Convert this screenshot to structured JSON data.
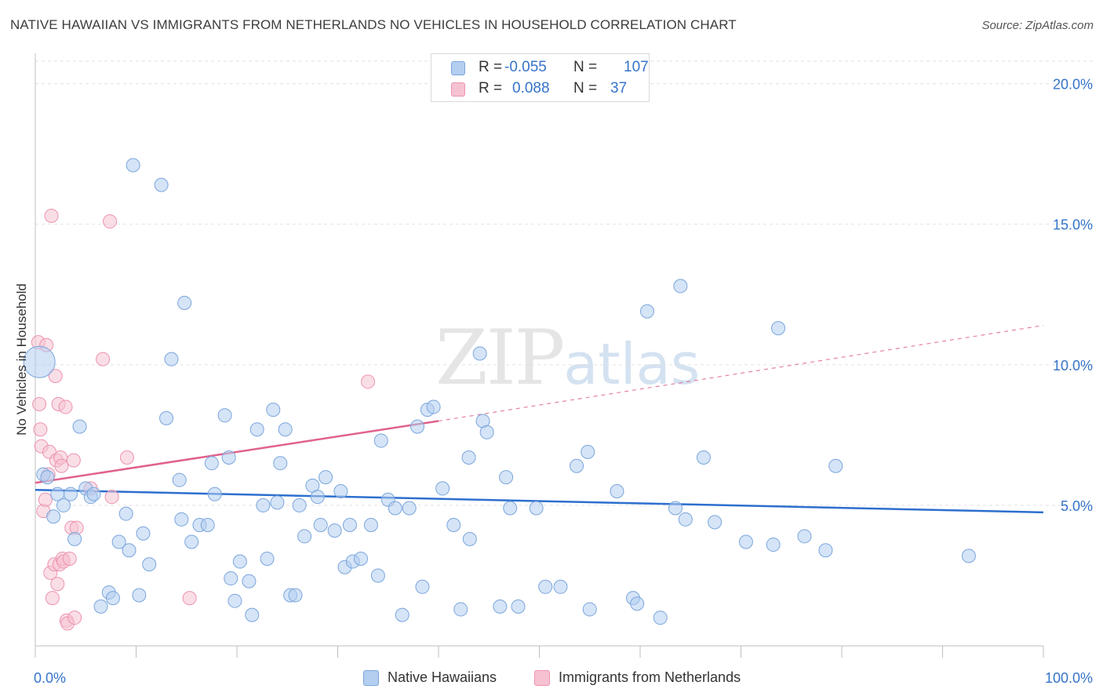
{
  "chart_data": {
    "type": "scatter",
    "title": "NATIVE HAWAIIAN VS IMMIGRANTS FROM NETHERLANDS NO VEHICLES IN HOUSEHOLD CORRELATION CHART",
    "source": "Source: ZipAtlas.com",
    "xlabel": "",
    "ylabel": "No Vehicles in Household",
    "xlim": [
      0,
      100
    ],
    "ylim": [
      0,
      20.8
    ],
    "x_tick_labels": [
      "0.0%",
      "100.0%"
    ],
    "y_tick_labels": [
      "5.0%",
      "10.0%",
      "15.0%",
      "20.0%"
    ],
    "y_ticks": [
      5,
      10,
      15,
      20
    ],
    "watermark": "ZIPatlas",
    "colors": {
      "blue_fill": "#b3cef0",
      "blue_stroke": "#7ba6dc",
      "blue_line": "#2d6fce",
      "pink_fill": "#f6c2d2",
      "pink_stroke": "#ec93b0",
      "pink_line": "#e0628d",
      "axis_text": "#3574c8"
    },
    "legend": [
      {
        "r_label": "R =",
        "r_value": "-0.055",
        "n_label": "N =",
        "n_value": "107"
      },
      {
        "r_label": "R =",
        "r_value": "0.088",
        "n_label": "N =",
        "n_value": "37"
      }
    ],
    "series": [
      {
        "name": "Native Hawaiians",
        "trend": {
          "x0": 0,
          "y0": 5.55,
          "x1": 100,
          "y1": 4.75
        },
        "points": [
          [
            0.4,
            10.1
          ],
          [
            0.8,
            6.1
          ],
          [
            1.2,
            6.0
          ],
          [
            1.8,
            4.6
          ],
          [
            2.2,
            5.4
          ],
          [
            2.8,
            5.0
          ],
          [
            3.5,
            5.4
          ],
          [
            3.9,
            3.8
          ],
          [
            4.4,
            7.8
          ],
          [
            5.0,
            5.6
          ],
          [
            5.5,
            5.3
          ],
          [
            5.8,
            5.4
          ],
          [
            6.5,
            1.4
          ],
          [
            7.3,
            1.9
          ],
          [
            7.7,
            1.7
          ],
          [
            8.3,
            3.7
          ],
          [
            9.0,
            4.7
          ],
          [
            9.3,
            3.4
          ],
          [
            9.7,
            17.1
          ],
          [
            10.3,
            1.8
          ],
          [
            10.7,
            4.0
          ],
          [
            11.3,
            2.9
          ],
          [
            12.5,
            16.4
          ],
          [
            13.0,
            8.1
          ],
          [
            13.5,
            10.2
          ],
          [
            14.3,
            5.9
          ],
          [
            14.5,
            4.5
          ],
          [
            14.8,
            12.2
          ],
          [
            15.5,
            3.7
          ],
          [
            16.3,
            4.3
          ],
          [
            17.1,
            4.3
          ],
          [
            17.5,
            6.5
          ],
          [
            17.8,
            5.4
          ],
          [
            18.8,
            8.2
          ],
          [
            19.2,
            6.7
          ],
          [
            19.4,
            2.4
          ],
          [
            19.8,
            1.6
          ],
          [
            20.3,
            3.0
          ],
          [
            21.2,
            2.3
          ],
          [
            21.5,
            1.1
          ],
          [
            22.0,
            7.7
          ],
          [
            22.6,
            5.0
          ],
          [
            23.0,
            3.1
          ],
          [
            23.6,
            8.4
          ],
          [
            24.0,
            5.1
          ],
          [
            24.3,
            6.5
          ],
          [
            24.8,
            7.7
          ],
          [
            25.3,
            1.8
          ],
          [
            25.8,
            1.8
          ],
          [
            26.2,
            5.0
          ],
          [
            26.7,
            3.9
          ],
          [
            27.5,
            5.7
          ],
          [
            28.0,
            5.3
          ],
          [
            28.3,
            4.3
          ],
          [
            28.8,
            6.0
          ],
          [
            29.7,
            4.1
          ],
          [
            30.3,
            5.5
          ],
          [
            30.7,
            2.8
          ],
          [
            31.2,
            4.3
          ],
          [
            31.5,
            3.0
          ],
          [
            32.3,
            3.1
          ],
          [
            33.3,
            4.3
          ],
          [
            34.0,
            2.5
          ],
          [
            34.3,
            7.3
          ],
          [
            35.0,
            5.2
          ],
          [
            35.7,
            4.9
          ],
          [
            36.4,
            1.1
          ],
          [
            37.1,
            4.9
          ],
          [
            37.9,
            7.8
          ],
          [
            38.4,
            2.1
          ],
          [
            38.9,
            8.4
          ],
          [
            39.5,
            8.5
          ],
          [
            40.4,
            5.6
          ],
          [
            42.2,
            1.3
          ],
          [
            43.0,
            6.7
          ],
          [
            43.1,
            3.8
          ],
          [
            44.1,
            10.4
          ],
          [
            44.4,
            8.0
          ],
          [
            44.8,
            7.6
          ],
          [
            46.1,
            1.4
          ],
          [
            46.7,
            6.0
          ],
          [
            47.1,
            4.9
          ],
          [
            47.9,
            1.4
          ],
          [
            49.7,
            4.9
          ],
          [
            50.6,
            2.1
          ],
          [
            52.1,
            2.1
          ],
          [
            53.7,
            6.4
          ],
          [
            54.8,
            6.9
          ],
          [
            55.0,
            1.3
          ],
          [
            57.7,
            5.5
          ],
          [
            59.3,
            1.7
          ],
          [
            59.7,
            1.5
          ],
          [
            60.7,
            11.9
          ],
          [
            62.0,
            1.0
          ],
          [
            63.5,
            4.9
          ],
          [
            64.0,
            12.8
          ],
          [
            64.5,
            4.5
          ],
          [
            66.3,
            6.7
          ],
          [
            67.4,
            4.4
          ],
          [
            70.5,
            3.7
          ],
          [
            73.2,
            3.6
          ],
          [
            73.7,
            11.3
          ],
          [
            76.3,
            3.9
          ],
          [
            78.4,
            3.4
          ],
          [
            79.4,
            6.4
          ],
          [
            92.6,
            3.2
          ],
          [
            41.5,
            4.3
          ]
        ]
      },
      {
        "name": "Immigrants from Netherlands",
        "trend": {
          "x0": 0,
          "y0": 5.8,
          "x1": 40,
          "y1": 8.0,
          "x_dash_end": 100,
          "y_dash_end": 11.4
        },
        "points": [
          [
            0.3,
            10.8
          ],
          [
            0.4,
            8.6
          ],
          [
            0.5,
            7.7
          ],
          [
            0.6,
            7.1
          ],
          [
            0.8,
            4.8
          ],
          [
            1.0,
            5.2
          ],
          [
            1.1,
            10.7
          ],
          [
            1.3,
            6.1
          ],
          [
            1.4,
            6.9
          ],
          [
            1.5,
            2.6
          ],
          [
            1.6,
            15.3
          ],
          [
            1.7,
            1.7
          ],
          [
            1.9,
            2.9
          ],
          [
            2.0,
            9.6
          ],
          [
            2.1,
            6.6
          ],
          [
            2.2,
            2.2
          ],
          [
            2.3,
            8.6
          ],
          [
            2.4,
            2.9
          ],
          [
            2.5,
            6.7
          ],
          [
            2.6,
            6.4
          ],
          [
            2.7,
            3.1
          ],
          [
            2.8,
            3.0
          ],
          [
            3.0,
            8.5
          ],
          [
            3.1,
            0.9
          ],
          [
            3.2,
            0.8
          ],
          [
            3.4,
            3.1
          ],
          [
            3.6,
            4.2
          ],
          [
            3.8,
            6.6
          ],
          [
            3.9,
            1.0
          ],
          [
            4.1,
            4.2
          ],
          [
            5.5,
            5.6
          ],
          [
            6.7,
            10.2
          ],
          [
            7.4,
            15.1
          ],
          [
            7.6,
            5.3
          ],
          [
            9.1,
            6.7
          ],
          [
            15.3,
            1.7
          ],
          [
            33.0,
            9.4
          ]
        ]
      }
    ]
  }
}
